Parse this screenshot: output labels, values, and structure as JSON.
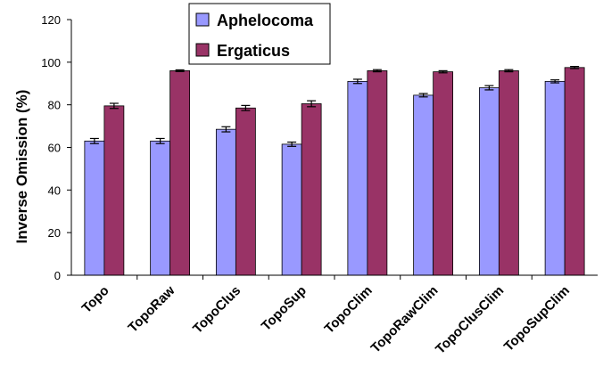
{
  "chart_data": {
    "type": "bar",
    "ylabel": "Inverse Omission (%)",
    "ylim": [
      0,
      120
    ],
    "yticks": [
      0,
      20,
      40,
      60,
      80,
      100,
      120
    ],
    "grid": false,
    "legend_position": "top-center",
    "categories": [
      "Topo",
      "TopoRaw",
      "TopoClus",
      "TopoSup",
      "TopoClim",
      "TopoRawClim",
      "TopoClusClim",
      "TopoSupClim"
    ],
    "series": [
      {
        "name": "Aphelocoma",
        "color": "#9999ff",
        "values": [
          63,
          63,
          68.5,
          61.5,
          91,
          84.5,
          88,
          91
        ],
        "errors": [
          1.2,
          1.2,
          1.2,
          1.0,
          1.0,
          0.8,
          1.0,
          0.7
        ]
      },
      {
        "name": "Ergaticus",
        "color": "#993366",
        "values": [
          79.5,
          96,
          78.5,
          80.5,
          96,
          95.5,
          96,
          97.5
        ],
        "errors": [
          1.2,
          0.4,
          1.2,
          1.4,
          0.5,
          0.5,
          0.5,
          0.5
        ]
      }
    ]
  }
}
